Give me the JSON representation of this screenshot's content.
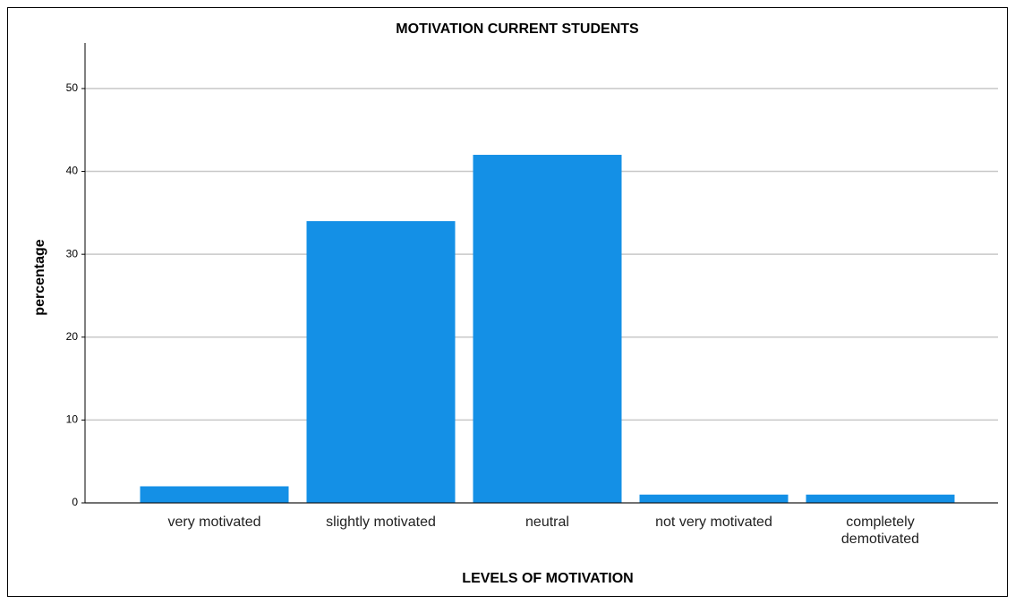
{
  "chart_data": {
    "type": "bar",
    "title": "MOTIVATION CURRENT STUDENTS",
    "x_label": "LEVELS OF MOTIVATION",
    "y_label": "percentage",
    "categories": [
      "very motivated",
      "slightly motivated",
      "neutral",
      "not very motivated",
      "completely demotivated"
    ],
    "values": [
      2,
      34,
      42,
      1,
      1
    ],
    "color": "#1490e6",
    "ylim": [
      0,
      55.5
    ],
    "yticks": [
      0,
      10,
      20,
      30,
      40,
      50
    ],
    "grid": true
  }
}
